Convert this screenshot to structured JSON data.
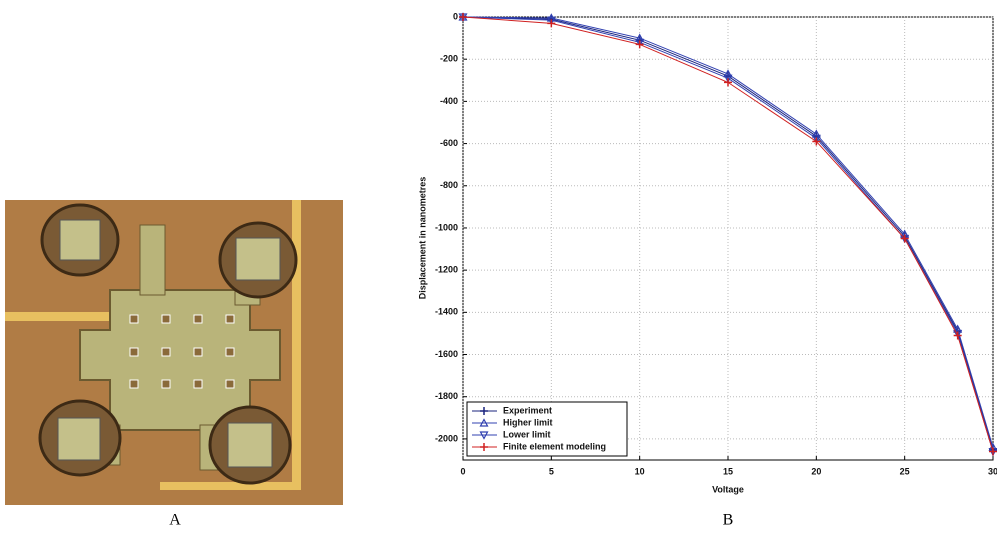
{
  "chart_data": {
    "type": "line",
    "x": [
      0,
      5,
      10,
      15,
      20,
      25,
      28,
      30
    ],
    "series": [
      {
        "name": "Experiment",
        "color": "#1a237e",
        "marker": "plus",
        "values": [
          0,
          -10,
          -110,
          -280,
          -565,
          -1040,
          -1490,
          -2050
        ]
      },
      {
        "name": "Higher limit",
        "color": "#3040b0",
        "marker": "triangle-up",
        "values": [
          0,
          -5,
          -100,
          -270,
          -555,
          -1030,
          -1480,
          -2040
        ]
      },
      {
        "name": "Lower limit",
        "color": "#3040b0",
        "marker": "triangle-down",
        "values": [
          0,
          -15,
          -120,
          -290,
          -575,
          -1050,
          -1500,
          -2060
        ]
      },
      {
        "name": "Finite element modeling",
        "color": "#d02020",
        "marker": "plus",
        "values": [
          0,
          -30,
          -130,
          -310,
          -590,
          -1050,
          -1510,
          -2060
        ]
      }
    ],
    "xlabel": "Voltage",
    "ylabel": "Displacement in nanometres",
    "xlim": [
      0,
      30
    ],
    "xticks": [
      0,
      5,
      10,
      15,
      20,
      25,
      30
    ],
    "ylim": [
      -2100,
      0
    ],
    "yticks": [
      0,
      -200,
      -400,
      -600,
      -800,
      -1000,
      -1200,
      -1400,
      -1600,
      -1800,
      -2000
    ],
    "grid": true,
    "legend": "lower left"
  },
  "captions": [
    "A",
    "B"
  ]
}
